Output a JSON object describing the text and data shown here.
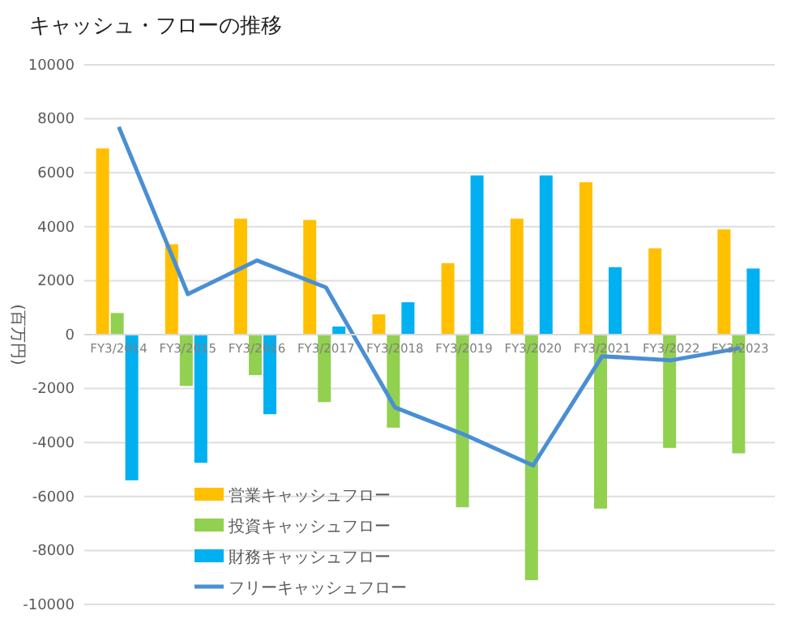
{
  "chart_data": {
    "type": "bar",
    "title": "キャッシュ・フローの推移",
    "ylabel": "(百万円)",
    "categories": [
      "FY3/2014",
      "FY3/2015",
      "FY3/2016",
      "FY3/2017",
      "FY3/2018",
      "FY3/2019",
      "FY3/2020",
      "FY3/2021",
      "FY3/2022",
      "FY3/2023"
    ],
    "series": [
      {
        "name": "営業キャッシュフロー",
        "color": "#ffc000",
        "values": [
          6900,
          3350,
          4300,
          4250,
          750,
          2650,
          4300,
          5650,
          3200,
          3900
        ]
      },
      {
        "name": "投資キャッシュフロー",
        "color": "#92d050",
        "values": [
          800,
          -1900,
          -1500,
          -2500,
          -3450,
          -6400,
          -9100,
          -6450,
          -4200,
          -4400
        ]
      },
      {
        "name": "財務キャッシュフロー",
        "color": "#00b0f0",
        "values": [
          -5400,
          -4750,
          -2950,
          300,
          1200,
          5900,
          5900,
          2500,
          null,
          2450
        ]
      },
      {
        "name": "フリーキャッシュフロー",
        "type": "line",
        "color": "#4a8fd4",
        "values": [
          7700,
          1500,
          2750,
          1750,
          -2700,
          -3700,
          -4850,
          -800,
          -950,
          -500
        ]
      }
    ],
    "ylim": [
      -10000,
      10000
    ],
    "yticks": [
      -10000,
      -8000,
      -6000,
      -4000,
      -2000,
      0,
      2000,
      4000,
      6000,
      8000,
      10000
    ],
    "grid": "y",
    "legend": "bottom left"
  }
}
